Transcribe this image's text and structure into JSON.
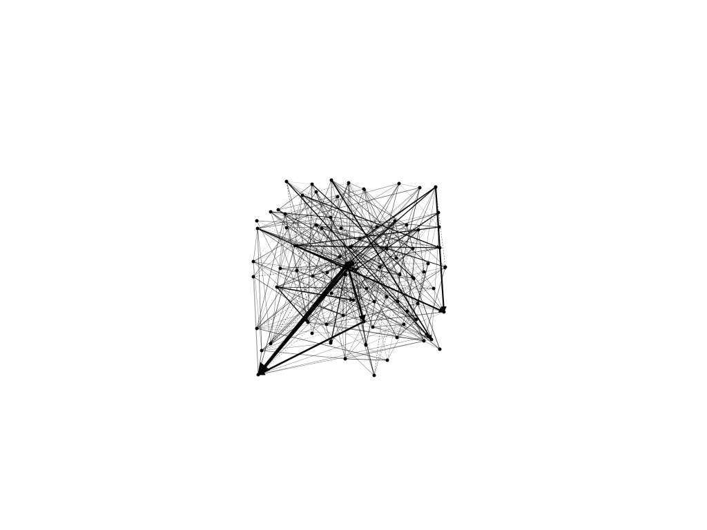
{
  "graph": {
    "type": "directed network diagram",
    "background_color": "#ffffff",
    "node_color": "#000000",
    "edge_color": "#000000",
    "labels_visible": false,
    "node_count": 85
  }
}
